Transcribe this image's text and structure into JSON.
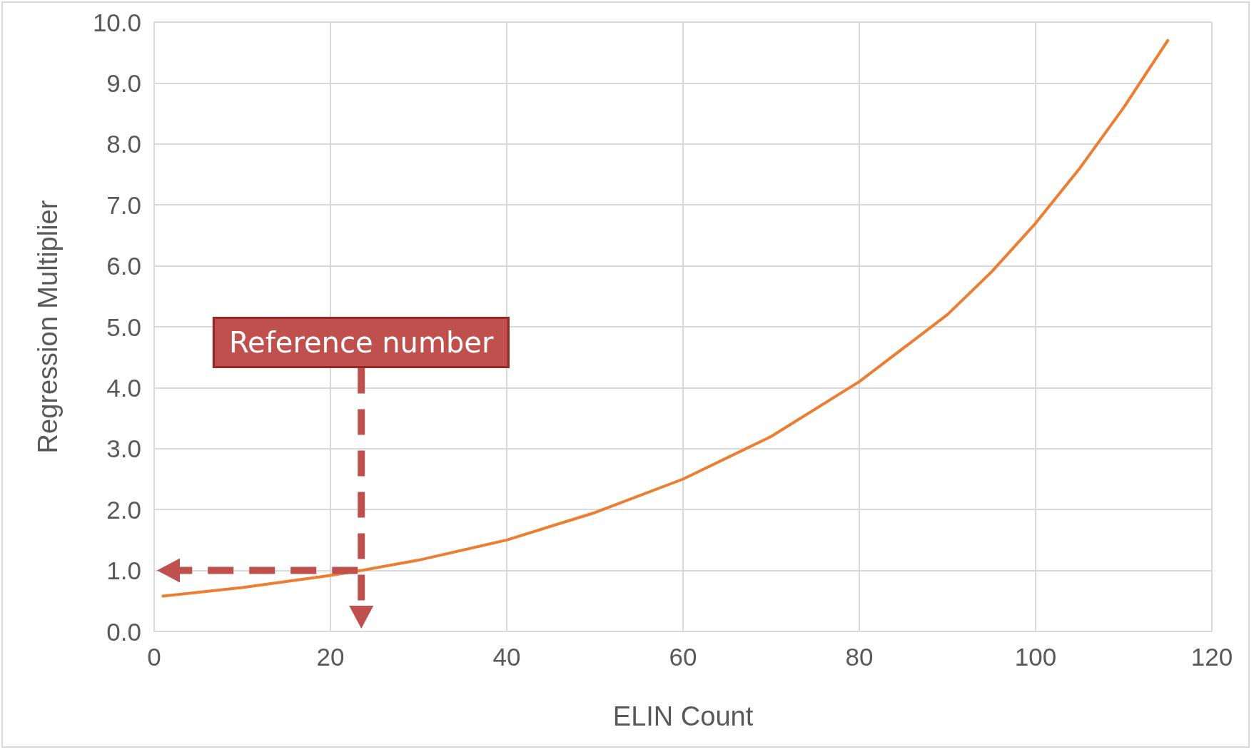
{
  "chart_data": {
    "type": "line",
    "xlabel": "ELIN Count",
    "ylabel": "Regression Multiplier",
    "series": [
      {
        "color": "#ed7d31",
        "x": [
          1,
          10,
          20,
          23.5,
          30,
          40,
          50,
          60,
          70,
          80,
          90,
          95,
          100,
          105,
          110,
          115
        ],
        "values": [
          0.58,
          0.72,
          0.92,
          1.0,
          1.17,
          1.5,
          1.95,
          2.5,
          3.2,
          4.1,
          5.2,
          5.9,
          6.7,
          7.6,
          8.6,
          9.7
        ]
      }
    ],
    "xlim": [
      0,
      120
    ],
    "xticks": [
      0,
      20,
      40,
      60,
      80,
      100,
      120
    ],
    "ylim": [
      0,
      10
    ],
    "yticks": [
      {
        "value": 0,
        "label": "0.0"
      },
      {
        "value": 1,
        "label": "1.0"
      },
      {
        "value": 2,
        "label": "2.0"
      },
      {
        "value": 3,
        "label": "3.0"
      },
      {
        "value": 4,
        "label": "4.0"
      },
      {
        "value": 5,
        "label": "5.0"
      },
      {
        "value": 6,
        "label": "6.0"
      },
      {
        "value": 7,
        "label": "7.0"
      },
      {
        "value": 8,
        "label": "8.0"
      },
      {
        "value": 9,
        "label": "9.0"
      },
      {
        "value": 10,
        "label": "10.0"
      }
    ],
    "annotations": [
      "Reference number"
    ],
    "ref_lines": [
      {
        "axis": "x",
        "value": 23.5,
        "color": "#c0504d",
        "line_style": "dashed"
      },
      {
        "axis": "y",
        "value": 1.0,
        "color": "#c0504d",
        "line_style": "dashed"
      }
    ],
    "grid": true,
    "marker": "none",
    "line_style": "solid"
  }
}
